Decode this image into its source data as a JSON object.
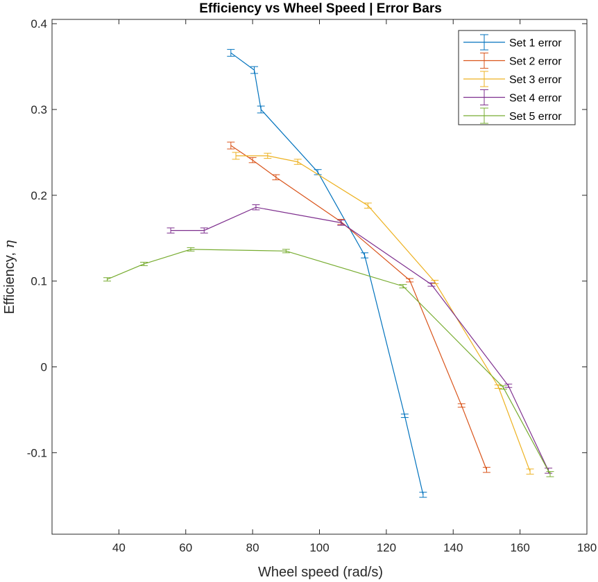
{
  "chart_data": {
    "type": "line",
    "title": "Efficiency vs Wheel Speed | Error Bars",
    "xlabel": "Wheel speed (rad/s)",
    "ylabel_prefix": "Efficiency, ",
    "ylabel_symbol": "η",
    "xlim": [
      20,
      180
    ],
    "ylim": [
      -0.195,
      0.405
    ],
    "xticks": [
      40,
      60,
      80,
      100,
      120,
      140,
      160,
      180
    ],
    "xtick_labels": [
      "40",
      "60",
      "80",
      "100",
      "120",
      "140",
      "160",
      "180"
    ],
    "yticks": [
      -0.1,
      0,
      0.1,
      0.2,
      0.3,
      0.4
    ],
    "ytick_labels": [
      "-0.1",
      "0",
      "0.1",
      "0.2",
      "0.3",
      "0.4"
    ],
    "grid": false,
    "legend_position": "top-right",
    "error_bars": true,
    "series": [
      {
        "name": "Set 1 error",
        "color": "#0072BD",
        "points": [
          [
            73.5,
            0.366
          ],
          [
            80.5,
            0.346
          ],
          [
            82.5,
            0.3
          ],
          [
            99.5,
            0.227
          ],
          [
            113.5,
            0.13
          ],
          [
            125.5,
            -0.057
          ],
          [
            131,
            -0.149
          ]
        ],
        "err": [
          0.004,
          0.004,
          0.004,
          0.003,
          0.003,
          0.002,
          0.003
        ]
      },
      {
        "name": "Set 2 error",
        "color": "#D95319",
        "points": [
          [
            73.5,
            0.258
          ],
          [
            80,
            0.241
          ],
          [
            87,
            0.221
          ],
          [
            106.5,
            0.169
          ],
          [
            127,
            0.101
          ],
          [
            142.5,
            -0.045
          ],
          [
            150,
            -0.12
          ]
        ],
        "err": [
          0.004,
          0.003,
          0.003,
          0.003,
          0.002,
          0.002,
          0.003
        ]
      },
      {
        "name": "Set 3 error",
        "color": "#EDB120",
        "points": [
          [
            75,
            0.246
          ],
          [
            84.5,
            0.246
          ],
          [
            93.5,
            0.239
          ],
          [
            114.5,
            0.188
          ],
          [
            134.5,
            0.099
          ],
          [
            153.5,
            -0.023
          ],
          [
            163,
            -0.122
          ]
        ],
        "err": [
          0.004,
          0.003,
          0.003,
          0.003,
          0.002,
          0.002,
          0.003
        ]
      },
      {
        "name": "Set 4 error",
        "color": "#7E2F8E",
        "points": [
          [
            55.5,
            0.159
          ],
          [
            65.5,
            0.159
          ],
          [
            81,
            0.186
          ],
          [
            106.5,
            0.168
          ],
          [
            133.5,
            0.096
          ],
          [
            156.5,
            -0.022
          ],
          [
            168.5,
            -0.121
          ]
        ],
        "err": [
          0.003,
          0.003,
          0.003,
          0.003,
          0.002,
          0.002,
          0.003
        ]
      },
      {
        "name": "Set 5 error",
        "color": "#77AC30",
        "points": [
          [
            36.5,
            0.102
          ],
          [
            47.5,
            0.12
          ],
          [
            61.5,
            0.137
          ],
          [
            90,
            0.135
          ],
          [
            125,
            0.094
          ],
          [
            155,
            -0.024
          ],
          [
            169,
            -0.125
          ]
        ],
        "err": [
          0.002,
          0.002,
          0.002,
          0.002,
          0.002,
          0.002,
          0.003
        ]
      }
    ]
  }
}
